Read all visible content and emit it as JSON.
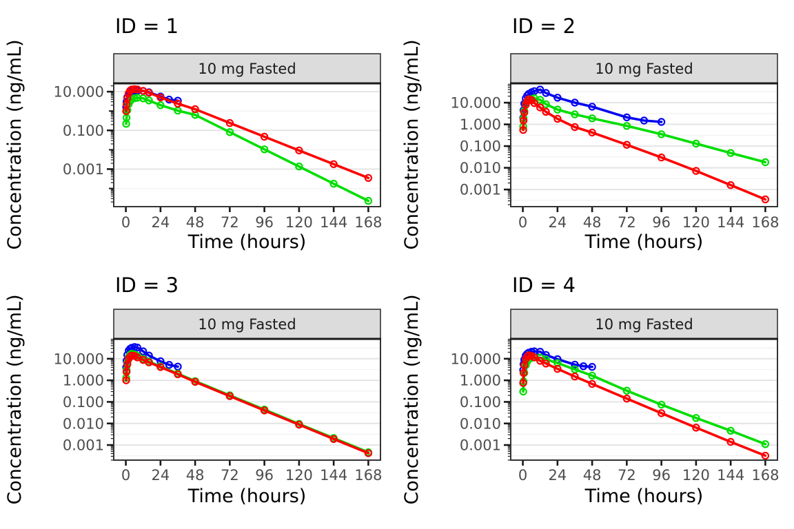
{
  "figure": {
    "kind": "faceted concentration-time plot",
    "legend": "none",
    "colors": {
      "strip_bg": "#dcdcdc",
      "strip_text": "#1a1a1a",
      "panel_border": "#333333",
      "strip_divider": "#1a1a1a",
      "tick_label": "#4d4d4d",
      "axis_text": "#000000",
      "grid_major": "#e4e4e4",
      "grid_minor": "#f2f2f2",
      "plot_bg": "#ffffff"
    }
  },
  "chart_data": [
    {
      "type": "line",
      "title": "ID = 1",
      "strip_label": "10 mg Fasted",
      "xlabel": "Time (hours)",
      "ylabel": "Concentration (ng/mL)",
      "x_scale": "linear",
      "y_scale": "log10",
      "grid": "horizontal-only",
      "x_ticks": [
        0,
        24,
        48,
        72,
        96,
        120,
        144,
        168
      ],
      "xlim": [
        -8.4,
        176.4
      ],
      "ylim_log10": [
        -4.94,
        1.43
      ],
      "y_breaks": [
        {
          "value": 10,
          "label": "10.000"
        },
        {
          "value": 0.1,
          "label": "0.100"
        },
        {
          "value": 0.001,
          "label": "0.001"
        }
      ],
      "series": [
        {
          "name": "blue",
          "color": "#0505f0",
          "x": [
            0.25,
            0.5,
            1,
            2,
            3,
            4,
            6,
            8,
            12,
            16,
            24,
            30,
            36
          ],
          "y": [
            1.6,
            3.0,
            5.2,
            8.0,
            9.3,
            10.0,
            10.6,
            11.0,
            10.8,
            9.3,
            5.6,
            3.9,
            3.4
          ]
        },
        {
          "name": "green",
          "color": "#00dd00",
          "x": [
            0.25,
            0.5,
            1,
            2,
            3,
            4,
            6,
            8,
            12,
            16,
            24,
            36,
            48,
            72,
            96,
            120,
            144,
            168
          ],
          "y": [
            0.22,
            0.45,
            1.1,
            2.3,
            3.3,
            4.0,
            4.6,
            4.8,
            4.5,
            3.5,
            2.0,
            1.05,
            0.63,
            0.0815,
            0.0105,
            0.00136,
            0.000176,
            2.28e-05
          ]
        },
        {
          "name": "red",
          "color": "#fc0000",
          "x": [
            0.25,
            0.5,
            1,
            2,
            3,
            4,
            6,
            8,
            12,
            16,
            24,
            36,
            48,
            72,
            96,
            120,
            144,
            168
          ],
          "y": [
            1.0,
            2.2,
            4.5,
            8.5,
            11.5,
            13.0,
            13.5,
            13.0,
            11.0,
            8.8,
            5.0,
            2.4,
            1.25,
            0.24,
            0.047,
            0.0092,
            0.0018,
            0.00035
          ]
        }
      ]
    },
    {
      "type": "line",
      "title": "ID = 2",
      "strip_label": "10 mg Fasted",
      "xlabel": "Time (hours)",
      "ylabel": "Concentration (ng/mL)",
      "x_scale": "linear",
      "y_scale": "log10",
      "grid": "horizontal-only",
      "x_ticks": [
        0,
        24,
        48,
        72,
        96,
        120,
        144,
        168
      ],
      "xlim": [
        -8.4,
        176.4
      ],
      "ylim_log10": [
        -3.79,
        1.89
      ],
      "y_breaks": [
        {
          "value": 10,
          "label": "10.000"
        },
        {
          "value": 1,
          "label": "1.000"
        },
        {
          "value": 0.1,
          "label": "0.100"
        },
        {
          "value": 0.01,
          "label": "0.010"
        },
        {
          "value": 0.001,
          "label": "0.001"
        }
      ],
      "series": [
        {
          "name": "blue",
          "color": "#0505f0",
          "x": [
            0.25,
            0.5,
            1,
            2,
            3,
            4,
            6,
            8,
            12,
            16,
            24,
            36,
            48,
            72,
            84,
            96
          ],
          "y": [
            2.0,
            4.5,
            9.0,
            16.0,
            21.0,
            25.0,
            30.0,
            34.0,
            40.0,
            28.0,
            17.0,
            10.0,
            6.5,
            2.1,
            1.5,
            1.3
          ]
        },
        {
          "name": "green",
          "color": "#00dd00",
          "x": [
            0.25,
            0.5,
            1,
            2,
            3,
            4,
            6,
            8,
            12,
            16,
            24,
            36,
            48,
            72,
            96,
            120,
            144,
            168
          ],
          "y": [
            0.8,
            1.9,
            4.2,
            8.5,
            11.5,
            13.0,
            14.5,
            16.0,
            13.5,
            8.5,
            4.8,
            2.9,
            1.9,
            0.85,
            0.35,
            0.13,
            0.048,
            0.018
          ]
        },
        {
          "name": "red",
          "color": "#fc0000",
          "x": [
            0.25,
            0.5,
            1,
            2,
            3,
            4,
            6,
            8,
            12,
            16,
            24,
            36,
            48,
            72,
            96,
            120,
            144,
            168
          ],
          "y": [
            0.55,
            1.5,
            3.5,
            8.0,
            12.0,
            14.5,
            13.0,
            9.5,
            6.0,
            3.8,
            1.8,
            0.75,
            0.42,
            0.115,
            0.03,
            0.0072,
            0.0016,
            0.00035
          ]
        }
      ]
    },
    {
      "type": "line",
      "title": "ID = 3",
      "strip_label": "10 mg Fasted",
      "xlabel": "Time (hours)",
      "ylabel": "Concentration (ng/mL)",
      "x_scale": "linear",
      "y_scale": "log10",
      "grid": "horizontal-only",
      "x_ticks": [
        0,
        24,
        48,
        72,
        96,
        120,
        144,
        168
      ],
      "xlim": [
        -8.4,
        176.4
      ],
      "ylim_log10": [
        -3.7,
        1.92
      ],
      "y_breaks": [
        {
          "value": 10,
          "label": "10.000"
        },
        {
          "value": 1,
          "label": "1.000"
        },
        {
          "value": 0.1,
          "label": "0.100"
        },
        {
          "value": 0.01,
          "label": "0.010"
        },
        {
          "value": 0.001,
          "label": "0.001"
        }
      ],
      "series": [
        {
          "name": "blue",
          "color": "#0505f0",
          "x": [
            0.25,
            0.5,
            1,
            2,
            3,
            4,
            6,
            8,
            12,
            16,
            24,
            30,
            36
          ],
          "y": [
            4.0,
            8.0,
            15.0,
            24.0,
            29.0,
            32.0,
            35.0,
            33.0,
            22.0,
            14.0,
            7.6,
            5.2,
            4.3
          ]
        },
        {
          "name": "green",
          "color": "#00dd00",
          "x": [
            0.25,
            0.5,
            1,
            2,
            3,
            4,
            6,
            8,
            12,
            16,
            24,
            36,
            48,
            72,
            96,
            120,
            144,
            168
          ],
          "y": [
            1.3,
            3.0,
            6.5,
            12.0,
            15.5,
            17.0,
            16.0,
            13.5,
            9.8,
            7.4,
            4.4,
            2.05,
            0.92,
            0.2,
            0.044,
            0.0095,
            0.0021,
            0.00046
          ]
        },
        {
          "name": "red",
          "color": "#fc0000",
          "x": [
            0.25,
            0.5,
            1,
            2,
            3,
            4,
            6,
            8,
            12,
            16,
            24,
            36,
            48,
            72,
            96,
            120,
            144,
            168
          ],
          "y": [
            1.0,
            2.5,
            5.5,
            10.0,
            12.5,
            14.0,
            13.5,
            11.5,
            8.8,
            6.8,
            4.1,
            1.9,
            0.85,
            0.185,
            0.04,
            0.0088,
            0.0019,
            0.00042
          ]
        }
      ]
    },
    {
      "type": "line",
      "title": "ID = 4",
      "strip_label": "10 mg Fasted",
      "xlabel": "Time (hours)",
      "ylabel": "Concentration (ng/mL)",
      "x_scale": "linear",
      "y_scale": "log10",
      "grid": "horizontal-only",
      "x_ticks": [
        0,
        24,
        48,
        72,
        96,
        120,
        144,
        168
      ],
      "xlim": [
        -8.4,
        176.4
      ],
      "ylim_log10": [
        -3.7,
        1.92
      ],
      "y_breaks": [
        {
          "value": 10,
          "label": "10.000"
        },
        {
          "value": 1,
          "label": "1.000"
        },
        {
          "value": 0.1,
          "label": "0.100"
        },
        {
          "value": 0.01,
          "label": "0.010"
        },
        {
          "value": 0.001,
          "label": "0.001"
        }
      ],
      "series": [
        {
          "name": "blue",
          "color": "#0505f0",
          "x": [
            0.25,
            0.5,
            1,
            2,
            3,
            4,
            6,
            8,
            12,
            16,
            24,
            36,
            42,
            48
          ],
          "y": [
            3.0,
            5.5,
            9.0,
            14.0,
            17.0,
            19.0,
            21.0,
            22.0,
            21.0,
            15.0,
            9.5,
            5.3,
            4.5,
            4.2
          ]
        },
        {
          "name": "green",
          "color": "#00dd00",
          "x": [
            0.25,
            0.5,
            1,
            2,
            3,
            4,
            6,
            8,
            12,
            16,
            24,
            36,
            48,
            72,
            96,
            120,
            144,
            168
          ],
          "y": [
            0.3,
            0.9,
            2.2,
            5.0,
            7.5,
            9.2,
            11.0,
            11.8,
            11.2,
            9.3,
            6.3,
            3.2,
            1.65,
            0.33,
            0.075,
            0.018,
            0.0046,
            0.0011
          ]
        },
        {
          "name": "red",
          "color": "#fc0000",
          "x": [
            0.25,
            0.5,
            1,
            2,
            3,
            4,
            6,
            8,
            12,
            16,
            24,
            36,
            48,
            72,
            96,
            120,
            144,
            168
          ],
          "y": [
            0.75,
            2.2,
            5.0,
            9.5,
            12.5,
            14.5,
            13.5,
            11.5,
            8.0,
            6.0,
            3.4,
            1.5,
            0.68,
            0.142,
            0.03,
            0.0064,
            0.0014,
            0.00032
          ]
        }
      ]
    }
  ]
}
